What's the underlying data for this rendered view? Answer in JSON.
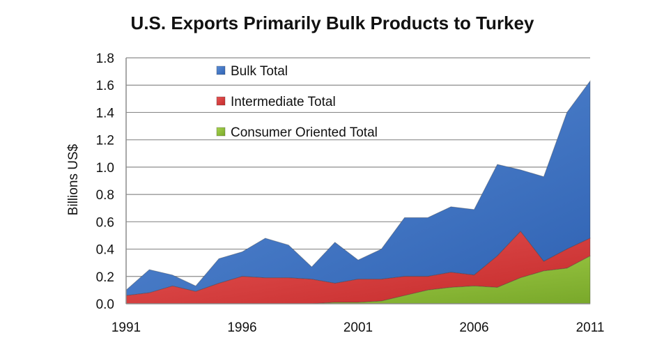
{
  "chart_data": {
    "type": "area",
    "stacked": true,
    "title": "U.S. Exports Primarily Bulk Products to Turkey",
    "ylabel": "Billions US$",
    "xlabel": "",
    "ylim": [
      0,
      1.8
    ],
    "yticks": [
      "0.0",
      "0.2",
      "0.4",
      "0.6",
      "0.8",
      "1.0",
      "1.2",
      "1.4",
      "1.6",
      "1.8"
    ],
    "xticks": [
      "1991",
      "1996",
      "2001",
      "2006",
      "2011"
    ],
    "grid": true,
    "legend_position": "top-left",
    "x": [
      1991,
      1992,
      1993,
      1994,
      1995,
      1996,
      1997,
      1998,
      1999,
      2000,
      2001,
      2002,
      2003,
      2004,
      2005,
      2006,
      2007,
      2008,
      2009,
      2010,
      2011
    ],
    "series": [
      {
        "name": "Bulk Total",
        "color": "#3a72c4",
        "values": [
          0.04,
          0.17,
          0.08,
          0.04,
          0.18,
          0.18,
          0.29,
          0.24,
          0.09,
          0.3,
          0.14,
          0.22,
          0.43,
          0.43,
          0.48,
          0.48,
          0.67,
          0.45,
          0.62,
          1.0,
          1.15
        ]
      },
      {
        "name": "Intermediate Total",
        "color": "#d63b3b",
        "values": [
          0.06,
          0.08,
          0.13,
          0.09,
          0.15,
          0.2,
          0.19,
          0.19,
          0.18,
          0.14,
          0.17,
          0.16,
          0.14,
          0.1,
          0.11,
          0.08,
          0.23,
          0.34,
          0.07,
          0.14,
          0.13
        ]
      },
      {
        "name": "Consumer Oriented Total",
        "color": "#8dbb3a",
        "values": [
          0.0,
          0.0,
          0.0,
          0.0,
          0.0,
          0.0,
          0.0,
          0.0,
          0.0,
          0.01,
          0.01,
          0.02,
          0.06,
          0.1,
          0.12,
          0.13,
          0.12,
          0.19,
          0.24,
          0.26,
          0.35
        ]
      }
    ]
  }
}
